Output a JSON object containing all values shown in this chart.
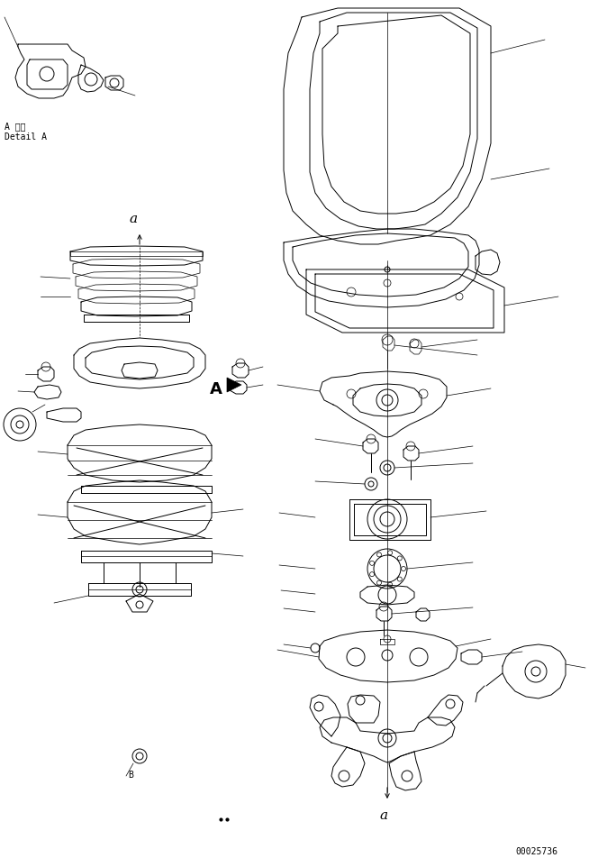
{
  "fig_width": 6.64,
  "fig_height": 9.53,
  "dpi": 100,
  "bg_color": "#ffffff",
  "line_color": "#000000",
  "part_number": "00025736",
  "detail_label_jp": "A 詳細",
  "detail_label_en": "Detail A",
  "label_a_italic": "a",
  "label_A_big": "A",
  "lw_main": 0.7,
  "lw_thin": 0.5
}
